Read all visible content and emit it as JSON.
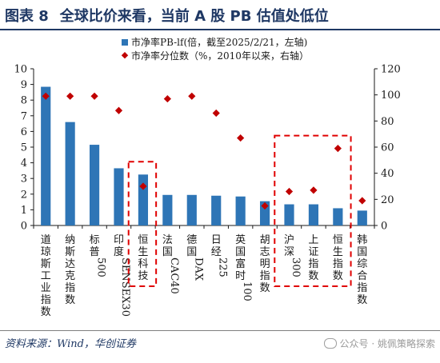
{
  "header": {
    "figure_label": "图表 8",
    "title": "全球比价来看，当前 A 股 PB 估值处低位"
  },
  "footer": {
    "source": "资料来源：Wind，华创证券",
    "watermark": "公众号 · 姚佩策略探索"
  },
  "colors": {
    "bar": "#2e75b6",
    "dot": "#c00000",
    "highlight_box": "#e00000",
    "title": "#1f3864"
  },
  "chart_data": {
    "type": "bar",
    "categories": [
      "道琼斯工业指数",
      "纳斯达克指数",
      "标普500",
      "印度SENSEX30",
      "恒生科技",
      "法国CAC40",
      "德国DAX",
      "日经225",
      "英国富时100",
      "胡志明指数",
      "沪深300",
      "上证指数",
      "恒生指数",
      "韩国综合指数"
    ],
    "category_labels": [
      [
        "道",
        "琼",
        "斯",
        "工",
        "业",
        "指",
        "数"
      ],
      [
        "纳",
        "斯",
        "达",
        "克",
        "指",
        "数"
      ],
      [
        "标",
        "普",
        "500"
      ],
      [
        "印",
        "度",
        "SENSEX30"
      ],
      [
        "恒",
        "生",
        "科",
        "技"
      ],
      [
        "法",
        "国",
        "CAC40"
      ],
      [
        "德",
        "国",
        "DAX"
      ],
      [
        "日",
        "经",
        "225"
      ],
      [
        "英",
        "国",
        "富",
        "时",
        "100"
      ],
      [
        "胡",
        "志",
        "明",
        "指",
        "数"
      ],
      [
        "沪",
        "深",
        "300"
      ],
      [
        "上",
        "证",
        "指",
        "数"
      ],
      [
        "恒",
        "生",
        "指",
        "数"
      ],
      [
        "韩",
        "国",
        "综",
        "合",
        "指",
        "数"
      ]
    ],
    "series": [
      {
        "name": "市净率PB-lf(倍，截至2025/2/21，左轴)",
        "type": "bar",
        "axis": "left",
        "values": [
          8.85,
          6.6,
          5.15,
          3.65,
          3.25,
          1.95,
          1.95,
          1.9,
          1.85,
          1.55,
          1.35,
          1.35,
          1.1,
          0.95
        ]
      },
      {
        "name": "市净率分位数（%，2010年以来，右轴）",
        "type": "scatter",
        "axis": "right",
        "values": [
          99,
          99,
          99,
          88,
          30,
          97,
          99,
          86,
          67,
          15,
          26,
          27,
          59,
          19
        ]
      }
    ],
    "ylim_left": [
      0,
      10
    ],
    "yticks_left": [
      0,
      1,
      2,
      3,
      4,
      5,
      6,
      7,
      8,
      9,
      10
    ],
    "ylim_right": [
      0,
      120
    ],
    "yticks_right": [
      0,
      20,
      40,
      60,
      80,
      100,
      120
    ],
    "legend_position": "top",
    "highlight_groups": [
      [
        "恒生科技"
      ],
      [
        "沪深300",
        "上证指数",
        "恒生指数"
      ]
    ]
  }
}
